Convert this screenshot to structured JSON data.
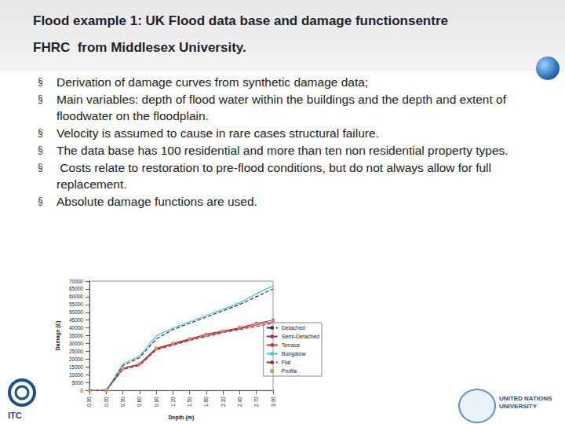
{
  "header": {
    "title_lines": [
      "Flood example 1: UK Flood data base and damage functionsentre",
      "FHRC  from Middlesex University."
    ]
  },
  "bullets": [
    "Derivation of damage curves from synthetic damage data;",
    "Main variables: depth of flood water within the buildings and the depth and extent of floodwater on the floodplain.",
    "Velocity is assumed to cause in rare cases structural failure.",
    "The data base has 100 residential and more than ten non residential property types.",
    " Costs relate to restoration to pre-flood conditions, but do not always allow for full replacement.",
    "Absolute damage functions are used."
  ],
  "logos": {
    "left": "ITC",
    "right": "UNITED NATIONS UNIVERSITY"
  },
  "chart_data": {
    "type": "line",
    "x_label": "Depth (m)",
    "y_label": "Damage (£)",
    "categories": [
      "-0.30",
      "0.00",
      "0.30",
      "0.60",
      "0.90",
      "1.20",
      "1.50",
      "1.80",
      "2.10",
      "2.40",
      "2.70",
      "3.00"
    ],
    "ylim": [
      0,
      70000
    ],
    "yticks": [
      0,
      5000,
      10000,
      15000,
      20000,
      25000,
      30000,
      35000,
      40000,
      45000,
      50000,
      55000,
      60000,
      65000,
      70000
    ],
    "grid": false,
    "legend": "right",
    "series": [
      {
        "name": "Detached",
        "color": "#333333",
        "marker": "none",
        "line_style": "dashed",
        "values": [
          0,
          0,
          16000,
          21000,
          33000,
          39000,
          43000,
          47000,
          51000,
          55000,
          60000,
          65000
        ]
      },
      {
        "name": "Semi-Detached",
        "color": "#993366",
        "marker": "circle",
        "line_style": "solid",
        "values": [
          0,
          0,
          14000,
          17000,
          27000,
          30000,
          33000,
          36000,
          38000,
          40000,
          43000,
          45000
        ]
      },
      {
        "name": "Terrace",
        "color": "#cc3333",
        "marker": "none",
        "line_style": "solid",
        "values": [
          0,
          0,
          14000,
          16500,
          26500,
          29500,
          32500,
          35000,
          37500,
          39500,
          42000,
          44000
        ]
      },
      {
        "name": "Bungalow",
        "color": "#33ccee",
        "marker": "none",
        "line_style": "solid",
        "values": [
          0,
          0,
          17000,
          22000,
          35000,
          40000,
          44000,
          48000,
          52000,
          56000,
          62000,
          67000
        ]
      },
      {
        "name": "Flat",
        "color": "#993333",
        "marker": "none",
        "line_style": "dashed",
        "values": [
          0,
          0,
          13500,
          16000,
          26000,
          29000,
          32000,
          34500,
          37000,
          39000,
          41000,
          43000
        ]
      },
      {
        "name": "Profile",
        "color": "#cc9966",
        "marker": "square",
        "line_style": "none",
        "values": [
          0,
          0,
          14000,
          17000,
          27000,
          30000,
          33000,
          35500,
          38000,
          40500,
          42500,
          44500
        ]
      }
    ]
  }
}
